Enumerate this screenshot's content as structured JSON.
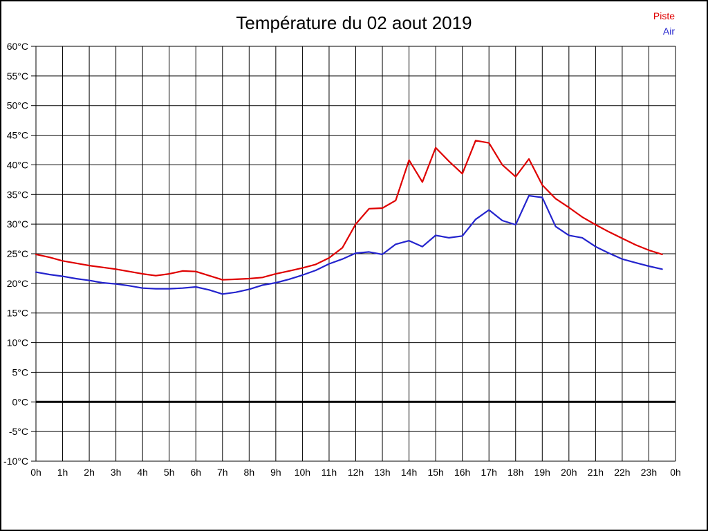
{
  "title": "Température du 02 aout 2019",
  "legend": {
    "piste": {
      "label": "Piste",
      "color": "#df0000"
    },
    "air": {
      "label": "Air",
      "color": "#2424cd"
    }
  },
  "chart_data": {
    "type": "line",
    "title": "Température du 02 aout 2019",
    "xlabel": "",
    "ylabel": "",
    "x_unit": "hours",
    "y_unit": "°C",
    "x_range_hours": [
      0,
      24
    ],
    "ylim": [
      -10,
      60
    ],
    "y_tick_step": 5,
    "grid": true,
    "zero_line_bold": true,
    "legend_position": "top-right",
    "x_tick_labels": [
      "0h",
      "1h",
      "2h",
      "3h",
      "4h",
      "5h",
      "6h",
      "7h",
      "8h",
      "9h",
      "10h",
      "11h",
      "12h",
      "13h",
      "14h",
      "15h",
      "16h",
      "17h",
      "18h",
      "19h",
      "20h",
      "21h",
      "22h",
      "23h",
      "0h"
    ],
    "y_tick_labels": [
      "60°C",
      "55°C",
      "50°C",
      "45°C",
      "40°C",
      "35°C",
      "30°C",
      "25°C",
      "20°C",
      "15°C",
      "10°C",
      "5°C",
      "0°C",
      "-5°C",
      "-10°C"
    ],
    "x_hours": [
      0,
      0.5,
      1,
      1.5,
      2,
      2.5,
      3,
      3.5,
      4,
      4.5,
      5,
      5.5,
      6,
      6.5,
      7,
      7.5,
      8,
      8.5,
      9,
      9.5,
      10,
      10.5,
      11,
      11.5,
      12,
      12.5,
      13,
      13.5,
      14,
      14.5,
      15,
      15.5,
      16,
      16.5,
      17,
      17.5,
      18,
      18.5,
      19,
      19.5,
      20,
      20.5,
      21,
      21.5,
      22,
      22.5,
      23,
      23.5
    ],
    "series": [
      {
        "name": "Piste",
        "color": "#df0000",
        "values": [
          24.9,
          24.4,
          23.8,
          23.4,
          23.0,
          22.7,
          22.4,
          22.0,
          21.6,
          21.3,
          21.6,
          22.1,
          22.0,
          21.3,
          20.6,
          20.7,
          20.8,
          21.0,
          21.6,
          22.1,
          22.6,
          23.2,
          24.3,
          26.0,
          30.0,
          32.6,
          32.7,
          34.0,
          40.8,
          37.1,
          42.9,
          40.6,
          38.5,
          44.1,
          43.7,
          40.0,
          38.0,
          41.0,
          36.6,
          34.3,
          32.8,
          31.2,
          29.9,
          28.7,
          27.6,
          26.5,
          25.6,
          24.9
        ]
      },
      {
        "name": "Air",
        "color": "#2424cd",
        "values": [
          21.9,
          21.5,
          21.2,
          20.8,
          20.5,
          20.1,
          19.9,
          19.6,
          19.2,
          19.1,
          19.1,
          19.2,
          19.4,
          18.9,
          18.2,
          18.5,
          19.0,
          19.7,
          20.1,
          20.7,
          21.4,
          22.2,
          23.3,
          24.1,
          25.1,
          25.3,
          24.9,
          26.6,
          27.2,
          26.2,
          28.1,
          27.7,
          28.0,
          30.8,
          32.4,
          30.6,
          29.9,
          34.8,
          34.5,
          29.6,
          28.1,
          27.7,
          26.2,
          25.1,
          24.1,
          23.5,
          22.9,
          22.4
        ]
      }
    ]
  }
}
